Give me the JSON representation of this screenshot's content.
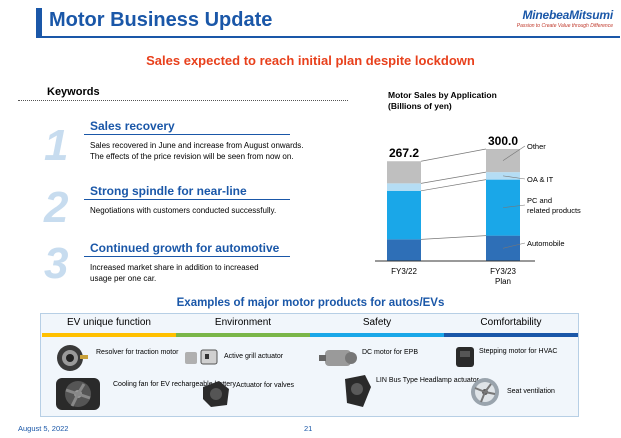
{
  "header": {
    "title": "Motor Business Update",
    "logo_name": "MinebeaMitsumi",
    "logo_tagline": "Passion to Create Value through Difference"
  },
  "headline": "Sales expected to reach initial plan despite lockdown",
  "keywords": {
    "title": "Keywords",
    "items": [
      {
        "number": "1",
        "heading": "Sales recovery",
        "body": [
          "Sales recovered in June and increase from August onwards.",
          "The effects of the price revision will be seen from now on."
        ]
      },
      {
        "number": "2",
        "heading": "Strong spindle for near-line",
        "body": [
          "Negotiations with customers conducted successfully."
        ]
      },
      {
        "number": "3",
        "heading": "Continued growth for automotive",
        "body": [
          "Increased market share in addition to increased",
          "usage per one car."
        ]
      }
    ]
  },
  "chart_data": {
    "type": "bar",
    "stacked": true,
    "title": "Motor Sales by Application",
    "subtitle": "(Billions of yen)",
    "categories": [
      "FY3/22",
      "FY3/23"
    ],
    "category_sublabels": [
      "",
      "Plan"
    ],
    "totals": [
      267.2,
      300.0
    ],
    "totals_labels": [
      "267.2",
      "300.0"
    ],
    "series": [
      {
        "name": "Automobile",
        "values": [
          58,
          68
        ],
        "color": "#2e6fb7"
      },
      {
        "name": "PC and related products",
        "values": [
          130,
          150
        ],
        "color": "#1aa7e8"
      },
      {
        "name": "OA & IT",
        "values": [
          20,
          20
        ],
        "color": "#b5ddf4"
      },
      {
        "name": "Other",
        "values": [
          59.2,
          62
        ],
        "color": "#bfbfbf"
      }
    ],
    "legend_labels": [
      "Other",
      "OA & IT",
      "PC and related products",
      "Automobile"
    ],
    "legend_placement": "right",
    "ylim": [
      0,
      300
    ]
  },
  "examples": {
    "title": "Examples of major motor products for autos/EVs",
    "categories": [
      {
        "label": "EV unique function",
        "color": "#ffc000"
      },
      {
        "label": "Environment",
        "color": "#7ab648"
      },
      {
        "label": "Safety",
        "color": "#1aa7e8"
      },
      {
        "label": "Comfortability",
        "color": "#1a57a8"
      }
    ],
    "products": [
      {
        "label": "Resolver for traction motor",
        "icon": "resolver-icon"
      },
      {
        "label": "Cooling fan for EV rechargeable battery",
        "icon": "fan-icon"
      },
      {
        "label": "Active grill actuator",
        "icon": "actuator-icon"
      },
      {
        "label": "Actuator for valves",
        "icon": "valve-actuator-icon"
      },
      {
        "label": "DC motor for EPB",
        "icon": "dc-motor-icon"
      },
      {
        "label": "LIN Bus Type Headlamp actuator",
        "icon": "headlamp-actuator-icon"
      },
      {
        "label": "Stepping motor for HVAC",
        "icon": "stepping-motor-icon"
      },
      {
        "label": "Seat ventilation",
        "icon": "seat-fan-icon"
      }
    ]
  },
  "footer": {
    "date": "August 5, 2022",
    "page": "21"
  }
}
